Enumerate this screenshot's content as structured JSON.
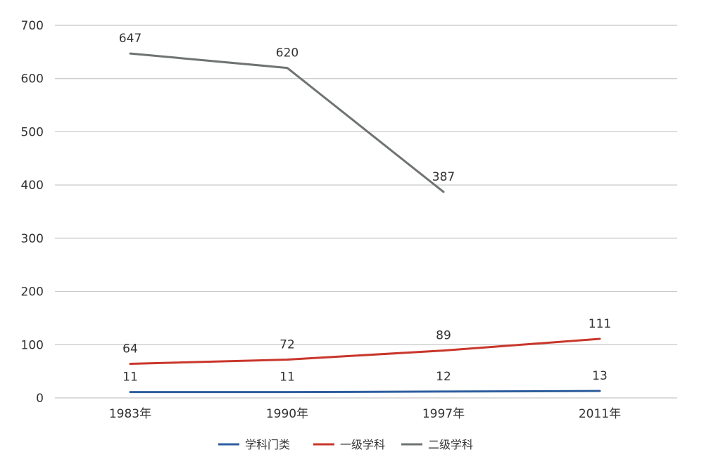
{
  "chart_data": {
    "type": "line",
    "categories": [
      "1983年",
      "1990年",
      "1997年",
      "2011年"
    ],
    "ylim": [
      0,
      700
    ],
    "yticks": [
      0,
      100,
      200,
      300,
      400,
      500,
      600,
      700
    ],
    "grid": true,
    "legend_position": "bottom",
    "series": [
      {
        "name": "学科门类",
        "color": "#2e5e9e",
        "values": [
          11,
          11,
          12,
          13
        ]
      },
      {
        "name": "一级学科",
        "color": "#c9362b",
        "values": [
          64,
          72,
          89,
          111
        ]
      },
      {
        "name": "二级学科",
        "color": "#6f7373",
        "values": [
          647,
          620,
          387,
          null
        ]
      }
    ]
  }
}
